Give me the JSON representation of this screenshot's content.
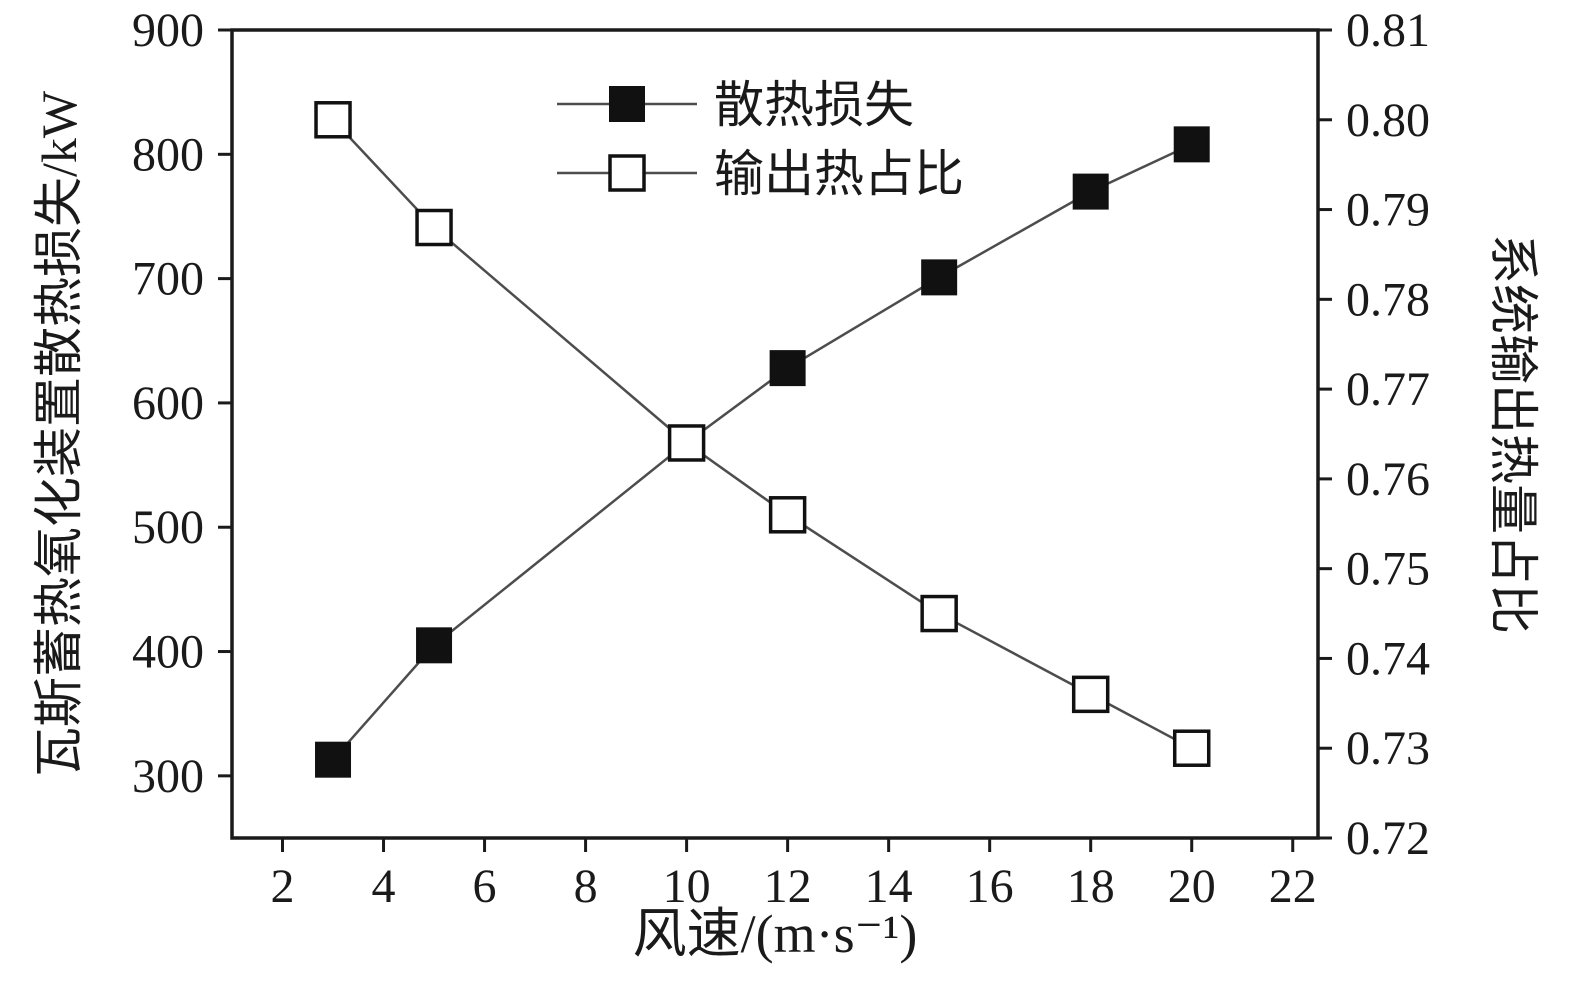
{
  "chart_data": {
    "type": "line",
    "title": "",
    "x": [
      3,
      5,
      10,
      12,
      15,
      18,
      20
    ],
    "series": [
      {
        "name": "散热损失",
        "axis": "left",
        "marker": "filled-square",
        "values": [
          313,
          405,
          568,
          628,
          701,
          770,
          808
        ]
      },
      {
        "name": "输出热占比",
        "axis": "right",
        "marker": "open-square",
        "values": [
          0.8,
          0.788,
          0.764,
          0.756,
          0.745,
          0.736,
          0.73
        ]
      }
    ],
    "xlabel": "风速/(m·s⁻¹)",
    "ylabel_left": "瓦斯蓄热氧化装置散热损失/kW",
    "ylabel_right": "系统输出热量占比",
    "xlim": [
      1,
      22.5
    ],
    "x_ticks": [
      "2",
      "4",
      "6",
      "8",
      "10",
      "12",
      "14",
      "16",
      "18",
      "20",
      "22"
    ],
    "ylim_left": [
      250,
      900
    ],
    "y_ticks_left": [
      "300",
      "400",
      "500",
      "600",
      "700",
      "800",
      "900"
    ],
    "ylim_right": [
      0.72,
      0.81
    ],
    "y_ticks_right": [
      "0.72",
      "0.73",
      "0.74",
      "0.75",
      "0.76",
      "0.77",
      "0.78",
      "0.79",
      "0.80",
      "0.81"
    ],
    "grid": false,
    "legend_position": "top-center",
    "line_color": "#4d4d4d",
    "marker_color": "#111111",
    "axis_color": "#1a1a1a",
    "background_color": "#ffffff"
  }
}
